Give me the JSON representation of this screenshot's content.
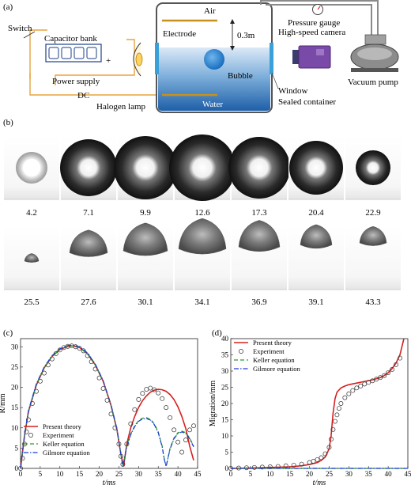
{
  "panel_a": {
    "label": "(a)",
    "air": "Air",
    "electrode": "Electrode",
    "height": "0.3m",
    "bubble": "Bubble",
    "water": "Water",
    "switch": "Switch",
    "capacitor_bank": "Capacitor bank",
    "plus": "+",
    "power_supply": "Power supply",
    "dc": "DC",
    "halogen_lamp": "Halogen lamp",
    "pressure_gauge": "Pressure gauge",
    "high_speed_camera": "High-speed camera",
    "vacuum_pump": "Vacuum pump",
    "window": "Window",
    "sealed_container": "Sealed container",
    "colors": {
      "wire": "#e8a33c",
      "water_top": "#d6e6f5",
      "water_bottom": "#1f5fa8",
      "window": "#3aa0d8",
      "camera": "#7a4aa8"
    }
  },
  "panel_b": {
    "label": "(b)",
    "row1_times": [
      "4.2",
      "7.1",
      "9.9",
      "12.6",
      "17.3",
      "20.4",
      "22.9"
    ],
    "row2_times": [
      "25.5",
      "27.6",
      "30.1",
      "34.1",
      "36.9",
      "39.1",
      "43.3"
    ]
  },
  "panel_c": {
    "label": "(c)",
    "chart_data": {
      "type": "line",
      "xlabel": "t/ms",
      "ylabel": "R/mm",
      "xlim": [
        0,
        45
      ],
      "ylim": [
        0,
        32
      ],
      "xticks": [
        0,
        5,
        10,
        15,
        20,
        25,
        30,
        35,
        40,
        45
      ],
      "yticks": [
        0,
        5,
        10,
        15,
        20,
        25,
        30
      ],
      "legend_position": "bottom-left",
      "series": [
        {
          "name": "Present theory",
          "style": "solid",
          "color": "#d62020",
          "x": [
            0,
            1,
            2,
            4,
            6,
            8,
            10,
            12,
            13.5,
            15,
            17,
            19,
            21,
            23,
            24.5,
            25.5,
            26.2,
            27,
            28,
            29,
            30,
            31,
            32,
            33,
            34,
            35,
            36,
            37,
            38,
            39,
            40,
            41,
            42,
            43,
            44
          ],
          "y": [
            0,
            8,
            14,
            20.5,
            24.8,
            27.6,
            29.3,
            30.1,
            30.2,
            29.8,
            28.3,
            25.5,
            21.5,
            15.5,
            9.5,
            3.5,
            0.5,
            6,
            10,
            12.8,
            15,
            16.7,
            17.9,
            18.8,
            19.3,
            19.5,
            19.4,
            19,
            18.2,
            17,
            15.2,
            12.8,
            9.8,
            5.5,
            2
          ]
        },
        {
          "name": "Experiment",
          "style": "marker",
          "color": "#333333",
          "x": [
            0,
            0.5,
            1,
            1.5,
            2,
            3,
            4,
            5,
            6,
            7,
            8,
            9,
            10,
            11,
            12,
            13,
            14,
            15,
            16,
            17,
            18,
            19,
            20,
            21,
            22,
            23,
            24,
            25,
            25.5,
            26,
            27,
            28,
            29,
            30,
            31,
            32,
            33,
            34,
            35,
            36,
            37,
            38,
            39,
            40,
            41,
            42,
            43,
            44
          ],
          "y": [
            0,
            2.5,
            6,
            9,
            12,
            16,
            19,
            21.5,
            23.5,
            25.5,
            27,
            28.3,
            29.2,
            29.8,
            30.1,
            30.2,
            30,
            29.6,
            29,
            27.8,
            26.3,
            24.5,
            22.3,
            19.7,
            16.8,
            13.4,
            10,
            6,
            3,
            1,
            6,
            11,
            14.5,
            17,
            18.5,
            19.5,
            19.8,
            19.4,
            18.6,
            17.2,
            15,
            12.5,
            9.5,
            6.5,
            4,
            7,
            9.5,
            10.5
          ]
        },
        {
          "name": "Keller equation",
          "style": "dashed",
          "color": "#2a9a2a",
          "x": [
            0,
            1,
            2,
            4,
            6,
            8,
            10,
            12,
            13.5,
            15,
            17,
            19,
            21,
            23,
            24.5,
            25.5,
            26,
            27,
            28,
            29,
            30,
            31,
            32,
            33,
            34,
            35,
            36,
            36.5,
            37,
            38,
            39,
            40,
            41,
            42,
            43,
            44
          ],
          "y": [
            0,
            8,
            14,
            20.5,
            24.8,
            27.6,
            29.3,
            30.1,
            30.2,
            29.8,
            28.3,
            25.5,
            21.5,
            15.5,
            9.5,
            3.5,
            0.5,
            5.5,
            8.5,
            10.5,
            11.8,
            12.4,
            12.5,
            12.1,
            11,
            9,
            5.5,
            2.5,
            0.5,
            5,
            7.5,
            8.8,
            9.2,
            8.8,
            7.5,
            5.5
          ]
        },
        {
          "name": "Gilmore equation",
          "style": "dashdot",
          "color": "#1a3fd6",
          "x": [
            0,
            1,
            2,
            4,
            6,
            8,
            10,
            12,
            13.5,
            15,
            17,
            19,
            21,
            23,
            24.5,
            25.5,
            26,
            27,
            28,
            29,
            30,
            31,
            32,
            33,
            34,
            35,
            36,
            36.5,
            37,
            38,
            39,
            40,
            41,
            42,
            43,
            44
          ],
          "y": [
            0,
            8.2,
            14.3,
            20.8,
            25,
            27.8,
            29.5,
            30.3,
            30.4,
            30,
            28.5,
            25.7,
            21.7,
            15.7,
            9.7,
            3.7,
            0.5,
            5.3,
            8.3,
            10.3,
            11.6,
            12.2,
            12.3,
            11.9,
            10.8,
            8.8,
            5.3,
            2.3,
            0.5,
            4.8,
            7.3,
            8.6,
            9,
            8.6,
            7.3,
            5.3
          ]
        }
      ]
    }
  },
  "panel_d": {
    "label": "(d)",
    "chart_data": {
      "type": "line",
      "xlabel": "t/ms",
      "ylabel": "Migration/mm",
      "xlim": [
        0,
        45
      ],
      "ylim": [
        0,
        40
      ],
      "xticks": [
        0,
        5,
        10,
        15,
        20,
        25,
        30,
        35,
        40,
        45
      ],
      "yticks": [
        0,
        5,
        10,
        15,
        20,
        25,
        30,
        35,
        40
      ],
      "legend_position": "top-left",
      "series": [
        {
          "name": "Present theory",
          "style": "solid",
          "color": "#d62020",
          "x": [
            0,
            5,
            10,
            15,
            18,
            20,
            22,
            23,
            24,
            25,
            25.5,
            26,
            26.5,
            27,
            28,
            29,
            30,
            32,
            34,
            36,
            38,
            39,
            40,
            41,
            42,
            43,
            43.5,
            44
          ],
          "y": [
            0,
            0.1,
            0.3,
            0.5,
            0.8,
            1.2,
            1.8,
            2.5,
            3.5,
            6,
            10,
            17,
            21.5,
            23.5,
            24.8,
            25.4,
            25.8,
            26.3,
            26.8,
            27.3,
            28,
            28.6,
            29.5,
            30.8,
            32.5,
            35,
            37.5,
            40
          ]
        },
        {
          "name": "Experiment",
          "style": "marker",
          "color": "#333333",
          "x": [
            0,
            2,
            4,
            6,
            8,
            10,
            12,
            14,
            16,
            18,
            20,
            21,
            22,
            23,
            24,
            25,
            25.5,
            26,
            26.5,
            27,
            27.5,
            28,
            29,
            30,
            31,
            32,
            33,
            34,
            35,
            36,
            37,
            38,
            39,
            40,
            41,
            42,
            43
          ],
          "y": [
            0,
            0.1,
            0.2,
            0.3,
            0.4,
            0.5,
            0.6,
            0.8,
            1,
            1.3,
            1.8,
            2.2,
            2.7,
            3.3,
            4.5,
            6.5,
            9,
            12,
            14.5,
            16.5,
            18.5,
            20,
            21.8,
            23,
            24,
            24.8,
            25.4,
            26,
            26.5,
            27,
            27.5,
            28,
            28.6,
            29.5,
            30.5,
            32,
            34
          ]
        },
        {
          "name": "Keller equation",
          "style": "dashed",
          "color": "#2a9a2a",
          "x": [
            0,
            45
          ],
          "y": [
            0,
            0
          ]
        },
        {
          "name": "Gilmore equation",
          "style": "dashdot",
          "color": "#1a3fd6",
          "x": [
            0,
            45
          ],
          "y": [
            0,
            0
          ]
        }
      ]
    }
  }
}
